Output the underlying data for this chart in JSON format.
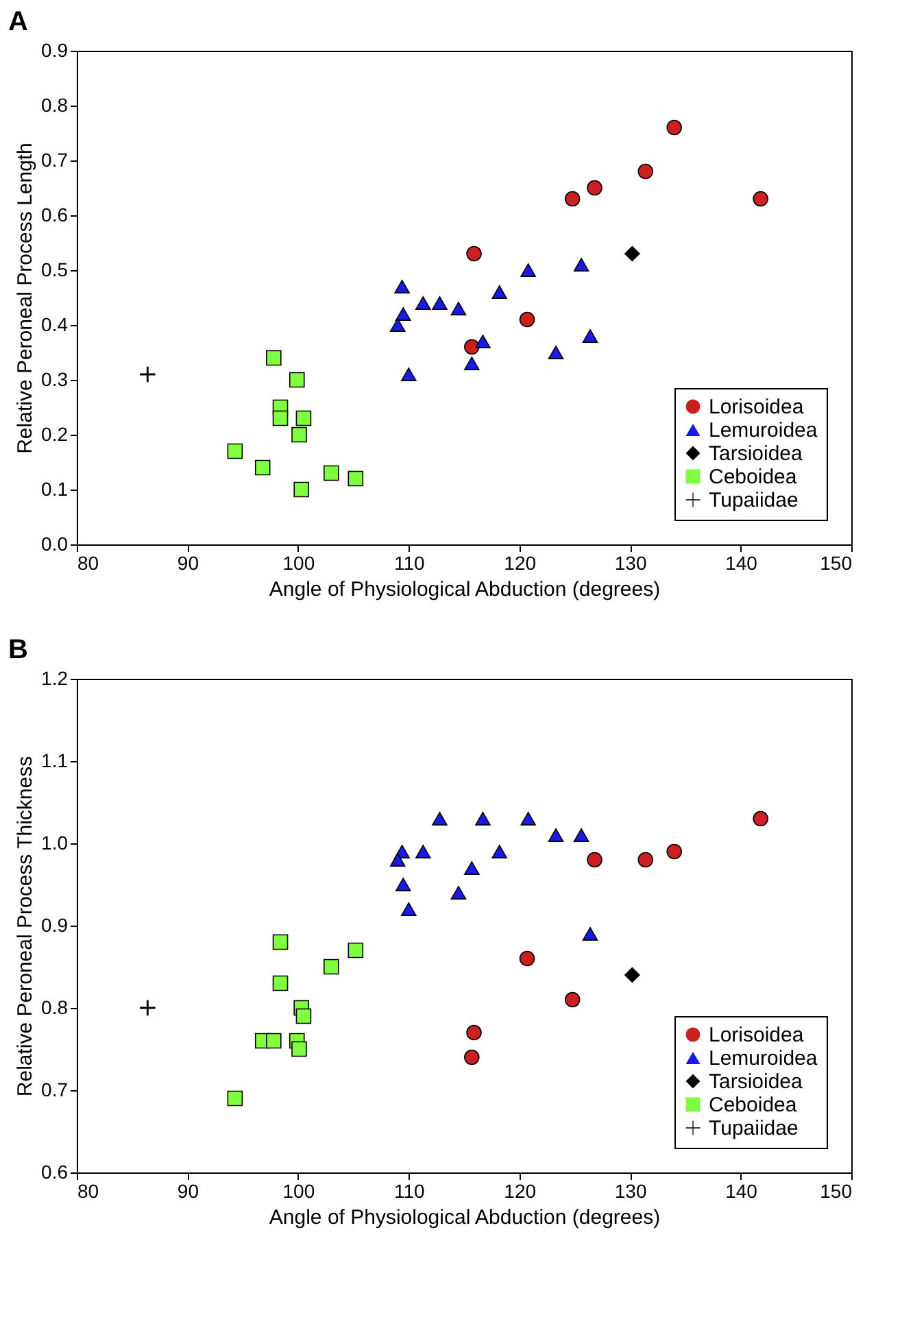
{
  "chart_data": [
    {
      "type": "scatter",
      "title": "A",
      "xlabel": "Angle of Physiological Abduction (degrees)",
      "ylabel": "Relative Peroneal Process Length",
      "xlim": [
        80,
        150
      ],
      "xticks": [
        80,
        90,
        100,
        110,
        120,
        130,
        140,
        150
      ],
      "ylim": [
        0,
        0.9
      ],
      "yticks": [
        {
          "value": 0,
          "label": "0.0"
        },
        {
          "value": 0.1,
          "label": "0.1"
        },
        {
          "value": 0.2,
          "label": "0.2"
        },
        {
          "value": 0.3,
          "label": "0.3"
        },
        {
          "value": 0.4,
          "label": "0.4"
        },
        {
          "value": 0.5,
          "label": "0.5"
        },
        {
          "value": 0.6,
          "label": "0.6"
        },
        {
          "value": 0.7,
          "label": "0.7"
        },
        {
          "value": 0.8,
          "label": "0.8"
        },
        {
          "value": 0.9,
          "label": "0.9"
        }
      ],
      "grid": false,
      "legend": "bottom right",
      "series": [
        {
          "name": "Lorisoidea",
          "color": "#cc1f1f",
          "marker": "circle",
          "x": [
            134.0,
            131.4,
            126.8,
            124.8,
            141.8,
            115.9,
            120.7,
            115.7
          ],
          "values": [
            0.76,
            0.68,
            0.65,
            0.63,
            0.63,
            0.53,
            0.41,
            0.36
          ]
        },
        {
          "name": "Lemuroidea",
          "color": "#1a1ae6",
          "marker": "triangle",
          "x": [
            109.4,
            109.5,
            109.0,
            111.3,
            112.8,
            114.5,
            118.2,
            120.8,
            125.6,
            116.7,
            110.0,
            115.7,
            123.3,
            126.4
          ],
          "values": [
            0.47,
            0.42,
            0.4,
            0.44,
            0.44,
            0.43,
            0.46,
            0.5,
            0.51,
            0.37,
            0.31,
            0.33,
            0.35,
            0.38
          ]
        },
        {
          "name": "Tarsioidea",
          "color": "#000000",
          "marker": "diamond",
          "x": [
            130.2
          ],
          "values": [
            0.53
          ]
        },
        {
          "name": "Ceboidea",
          "color": "#80ff40",
          "marker": "square",
          "x": [
            97.8,
            99.9,
            98.4,
            98.4,
            100.5,
            100.1,
            94.3,
            96.8,
            103.0,
            105.2,
            100.3
          ],
          "values": [
            0.34,
            0.3,
            0.25,
            0.23,
            0.23,
            0.2,
            0.17,
            0.14,
            0.13,
            0.12,
            0.1
          ]
        },
        {
          "name": "Tupaiidae",
          "color": "#000000",
          "marker": "cross",
          "x": [
            86.4
          ],
          "values": [
            0.31
          ]
        }
      ]
    },
    {
      "type": "scatter",
      "title": "B",
      "xlabel": "Angle of Physiological Abduction (degrees)",
      "ylabel": "Relative Peroneal Process Thickness",
      "xlim": [
        80,
        150
      ],
      "xticks": [
        80,
        90,
        100,
        110,
        120,
        130,
        140,
        150
      ],
      "ylim": [
        0.6,
        1.2
      ],
      "yticks": [
        0.6,
        0.7,
        0.8,
        0.9,
        {
          "value": 1.0,
          "label": "1.0"
        },
        1.1,
        1.2
      ],
      "grid": false,
      "legend": "bottom right",
      "series": [
        {
          "name": "Lorisoidea",
          "color": "#cc1f1f",
          "marker": "circle",
          "x": [
            141.8,
            134.0,
            131.4,
            126.8,
            120.7,
            124.8,
            115.9,
            115.7
          ],
          "values": [
            1.03,
            0.99,
            0.98,
            0.98,
            0.86,
            0.81,
            0.77,
            0.74
          ]
        },
        {
          "name": "Lemuroidea",
          "color": "#1a1ae6",
          "marker": "triangle",
          "x": [
            112.8,
            116.7,
            120.8,
            123.3,
            125.6,
            109.4,
            109.0,
            111.3,
            118.2,
            115.7,
            109.5,
            114.5,
            110.0,
            126.4
          ],
          "values": [
            1.03,
            1.03,
            1.03,
            1.01,
            1.01,
            0.99,
            0.98,
            0.99,
            0.99,
            0.97,
            0.95,
            0.94,
            0.92,
            0.89
          ]
        },
        {
          "name": "Tarsioidea",
          "color": "#000000",
          "marker": "diamond",
          "x": [
            130.2
          ],
          "values": [
            0.84
          ]
        },
        {
          "name": "Ceboidea",
          "color": "#80ff40",
          "marker": "square",
          "x": [
            98.4,
            105.2,
            103.0,
            98.4,
            100.3,
            100.5,
            96.8,
            97.8,
            99.9,
            100.1,
            94.3
          ],
          "values": [
            0.88,
            0.87,
            0.85,
            0.83,
            0.8,
            0.79,
            0.76,
            0.76,
            0.76,
            0.75,
            0.69
          ]
        },
        {
          "name": "Tupaiidae",
          "color": "#000000",
          "marker": "cross",
          "x": [
            86.4
          ],
          "values": [
            0.8
          ]
        }
      ]
    }
  ]
}
